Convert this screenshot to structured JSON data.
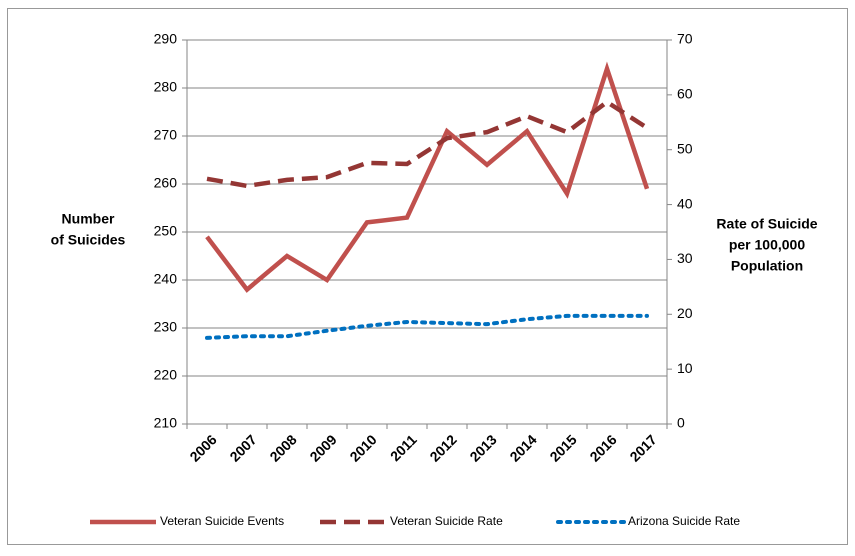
{
  "chart_data": {
    "type": "line",
    "categories": [
      "2006",
      "2007",
      "2008",
      "2009",
      "2010",
      "2011",
      "2012",
      "2013",
      "2014",
      "2015",
      "2016",
      "2017"
    ],
    "y_label": [
      "Number",
      "of Suicides"
    ],
    "y2_label": [
      "Rate of Suicide",
      "per 100,000",
      "Population"
    ],
    "ylim": [
      210,
      290
    ],
    "yticks": [
      210,
      220,
      230,
      240,
      250,
      260,
      270,
      280,
      290
    ],
    "y2lim": [
      0,
      70
    ],
    "y2ticks": [
      0,
      10,
      20,
      30,
      40,
      50,
      60,
      70
    ],
    "grid": true,
    "legend": "bottom",
    "series": [
      {
        "name": "Veteran Suicide Events",
        "color": "#c0504d",
        "style": "solid",
        "values": [
          249,
          238,
          245,
          240,
          252,
          253,
          271,
          264,
          271,
          258,
          284,
          259
        ]
      },
      {
        "name": "Veteran Suicide Rate",
        "color": "#943634",
        "style": "dashed",
        "axis": "y2",
        "values": [
          44.7,
          43.4,
          44.5,
          45,
          47.6,
          47.4,
          52.1,
          53.2,
          56.1,
          53.2,
          58.7,
          54
        ]
      },
      {
        "name": "Arizona Suicide Rate",
        "color": "#0070c0",
        "style": "dotted",
        "axis": "y2",
        "values": [
          15.7,
          16,
          16,
          17,
          17.9,
          18.6,
          18.4,
          18.2,
          19.1,
          19.7,
          19.7,
          19.7
        ]
      }
    ]
  }
}
